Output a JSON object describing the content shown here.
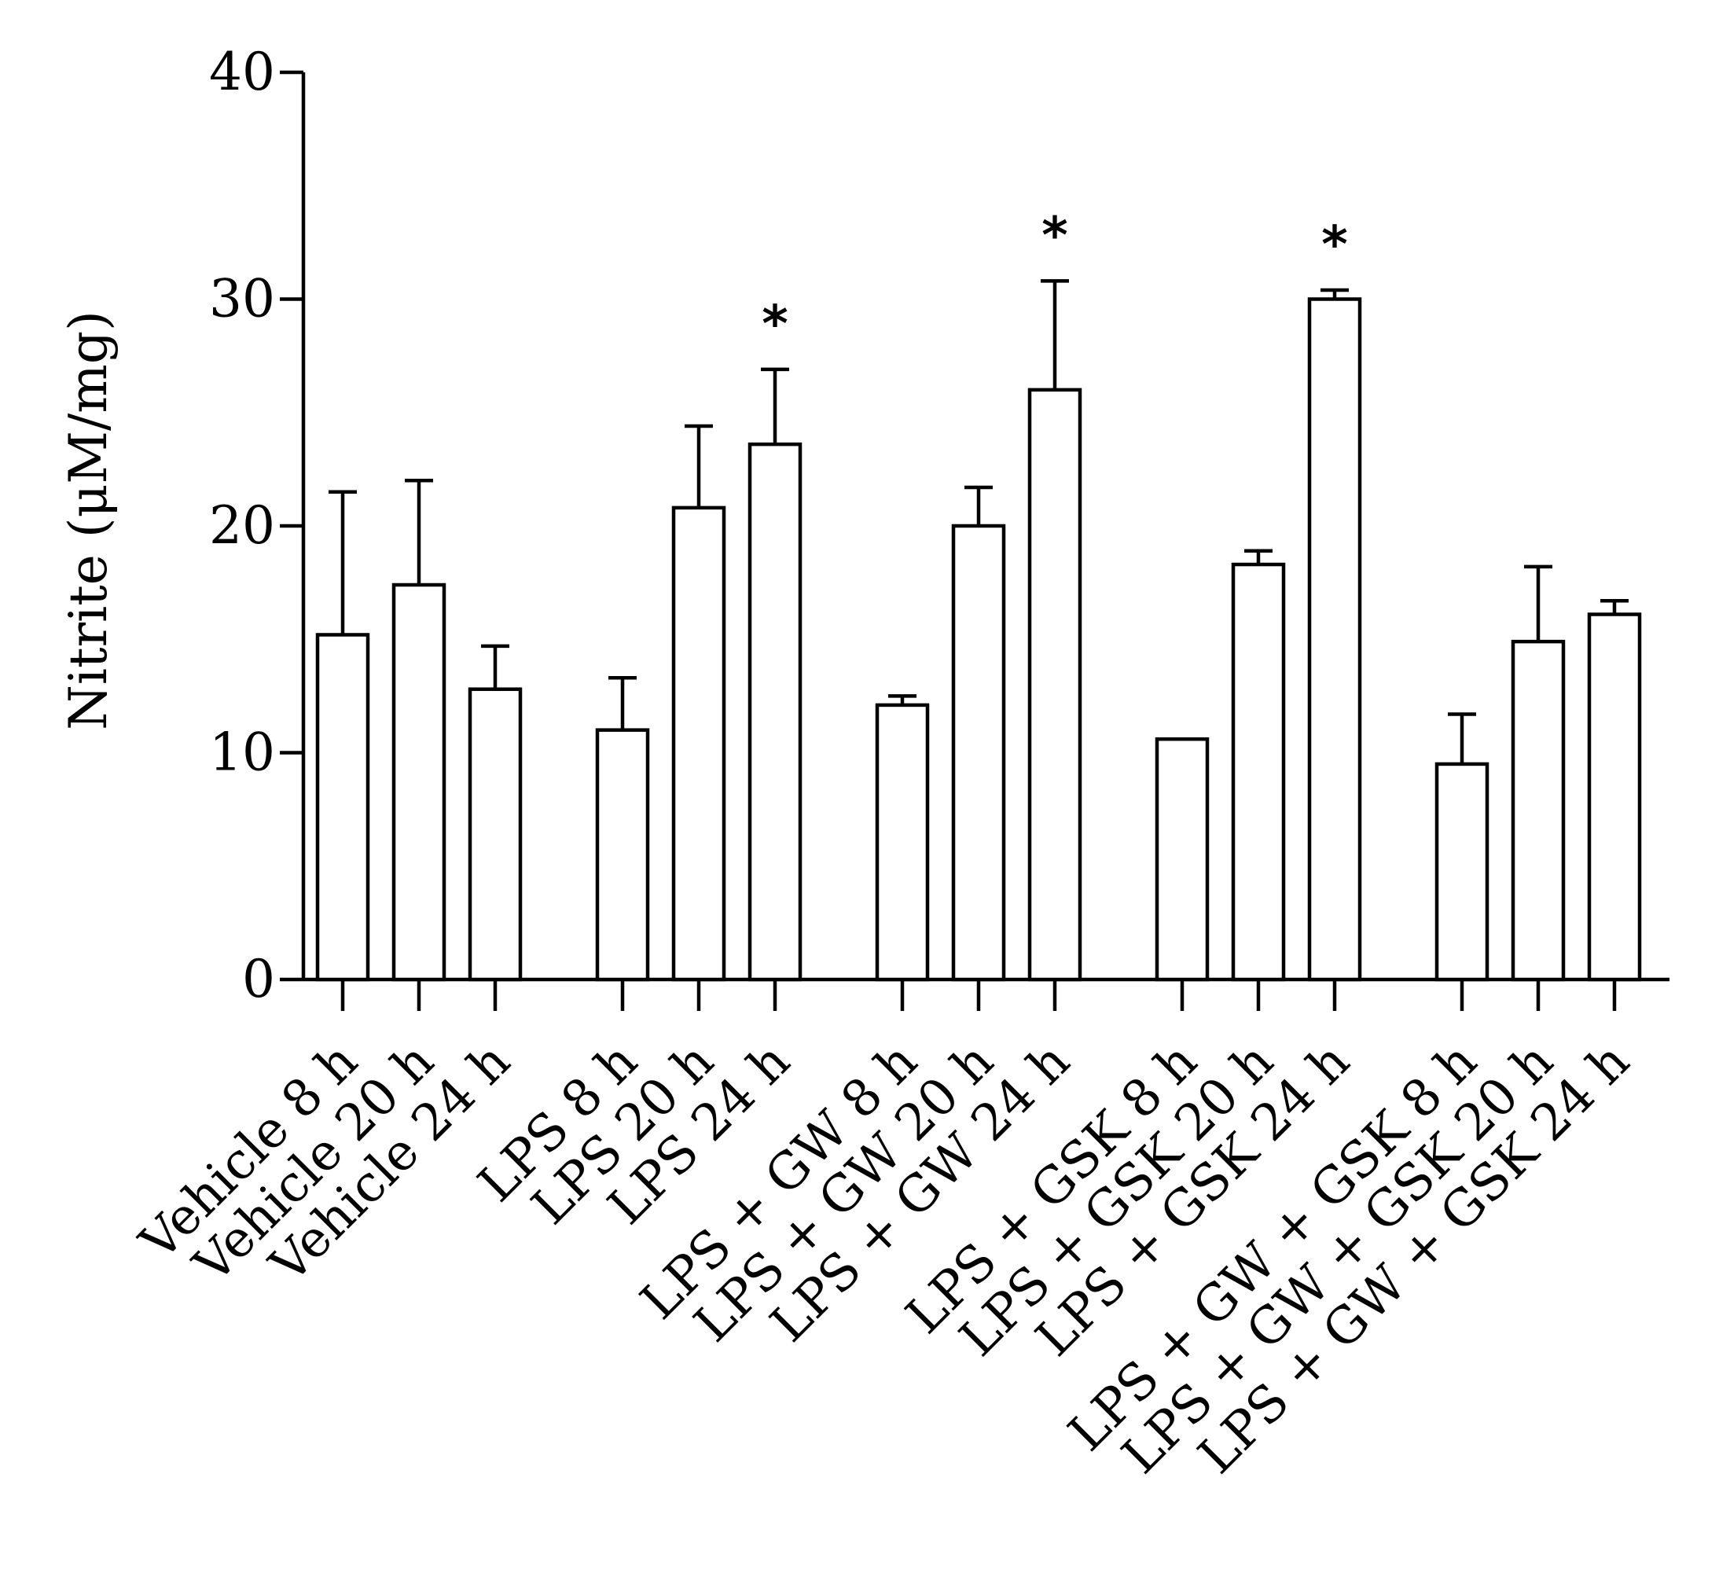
{
  "chart_data": {
    "type": "bar",
    "title": "",
    "xlabel": "",
    "ylabel": "Nitrite (μM/mg)",
    "ylim": [
      0,
      40
    ],
    "yticks": [
      0,
      10,
      20,
      30,
      40
    ],
    "grid": false,
    "legend": "none",
    "bar_color": "#ffffff",
    "edge_color": "#000000",
    "groups": [
      {
        "categories": [
          "Vehicle 8 h",
          "Vehicle 20 h",
          "Vehicle 24 h"
        ],
        "values": [
          15.2,
          17.4,
          12.8
        ],
        "errors": [
          6.3,
          4.6,
          1.9
        ],
        "significance": [
          "",
          "",
          ""
        ]
      },
      {
        "categories": [
          "LPS 8 h",
          "LPS 20 h",
          "LPS 24 h"
        ],
        "values": [
          11.0,
          20.8,
          23.6
        ],
        "errors": [
          2.3,
          3.6,
          3.3
        ],
        "significance": [
          "",
          "",
          "*"
        ]
      },
      {
        "categories": [
          "LPS + GW 8 h",
          "LPS + GW 20 h",
          "LPS + GW 24 h"
        ],
        "values": [
          12.1,
          20.0,
          26.0
        ],
        "errors": [
          0.4,
          1.7,
          4.8
        ],
        "significance": [
          "",
          "",
          "*"
        ]
      },
      {
        "categories": [
          "LPS + GSK 8 h",
          "LPS + GSK 20 h",
          "LPS + GSK 24 h"
        ],
        "values": [
          10.6,
          18.3,
          30.0
        ],
        "errors": [
          0.0,
          0.6,
          0.4
        ],
        "significance": [
          "",
          "",
          "*"
        ]
      },
      {
        "categories": [
          "LPS + GW + GSK 8 h",
          "LPS + GW + GSK 20 h",
          "LPS + GW + GSK 24 h"
        ],
        "values": [
          9.5,
          14.9,
          16.1
        ],
        "errors": [
          2.2,
          3.3,
          0.6
        ],
        "significance": [
          "",
          "",
          ""
        ]
      }
    ]
  }
}
